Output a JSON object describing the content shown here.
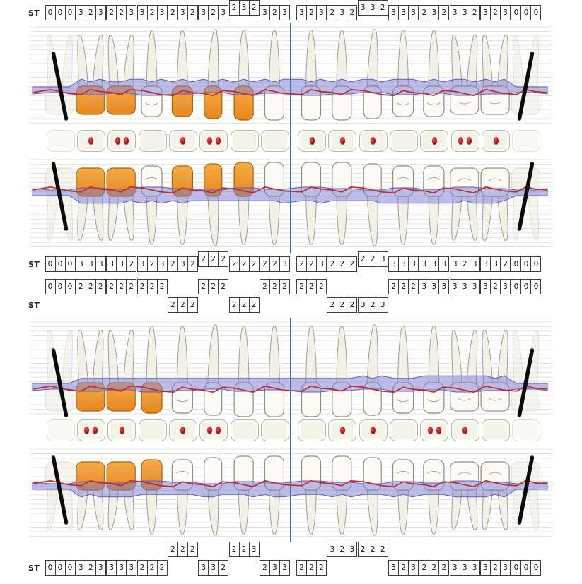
{
  "labels": {
    "st": "ST"
  },
  "perio": {
    "colors": {
      "pocket_band_fill": "rgba(124,124,212,0.5)",
      "pocket_band_stroke": "#5e5eb8",
      "gingival_line": "#c62828",
      "restoration_fill": "#e8871c",
      "restoration_fill_light": "#f7ab45",
      "midline": "#44709f",
      "bleeding_dot": "#c01010",
      "missing_tooth_mark": "#0b0b0b",
      "grid_line": "#dddcd6"
    },
    "teeth": {
      "types": [
        "molar",
        "molar",
        "molar",
        "premolar",
        "premolar",
        "canine",
        "incisor",
        "incisor",
        "incisor",
        "incisor",
        "canine",
        "premolar",
        "premolar",
        "molar",
        "molar",
        "molar"
      ],
      "upper": {
        "present": [
          false,
          true,
          true,
          true,
          true,
          true,
          true,
          true,
          true,
          true,
          true,
          true,
          true,
          true,
          true,
          false
        ],
        "restored": [
          false,
          true,
          true,
          false,
          true,
          true,
          true,
          false,
          false,
          false,
          false,
          false,
          false,
          false,
          false,
          false
        ]
      },
      "lower": {
        "present": [
          false,
          true,
          true,
          true,
          true,
          true,
          true,
          true,
          true,
          true,
          true,
          true,
          true,
          true,
          true,
          false
        ],
        "restored": [
          false,
          true,
          true,
          true,
          false,
          false,
          false,
          false,
          false,
          false,
          false,
          false,
          false,
          false,
          false,
          false
        ]
      }
    },
    "occlusal": {
      "upper_dots": [
        0,
        1,
        2,
        0,
        1,
        2,
        0,
        0,
        1,
        1,
        1,
        0,
        1,
        2,
        1,
        0
      ],
      "lower_dots": [
        0,
        2,
        1,
        0,
        1,
        2,
        0,
        0,
        0,
        1,
        1,
        0,
        2,
        1,
        0,
        0
      ]
    },
    "st_rows": {
      "upper_buccal": [
        {
          "v": [
            "0",
            "0",
            "0"
          ]
        },
        {
          "v": [
            "3",
            "2",
            "3"
          ]
        },
        {
          "v": [
            "2",
            "2",
            "3"
          ]
        },
        {
          "v": [
            "3",
            "2",
            "3"
          ]
        },
        {
          "v": [
            "2",
            "3",
            "2"
          ]
        },
        {
          "v": [
            "3",
            "2",
            "3"
          ]
        },
        {
          "v": [
            "2",
            "3",
            "2"
          ],
          "raised": true
        },
        {
          "v": [
            "3",
            "2",
            "3"
          ]
        },
        {
          "v": [
            "3",
            "2",
            "3"
          ]
        },
        {
          "v": [
            "2",
            "3",
            "2"
          ]
        },
        {
          "v": [
            "3",
            "3",
            "2"
          ],
          "raised": true
        },
        {
          "v": [
            "3",
            "3",
            "3"
          ]
        },
        {
          "v": [
            "2",
            "3",
            "2"
          ]
        },
        {
          "v": [
            "3",
            "3",
            "2"
          ]
        },
        {
          "v": [
            "3",
            "2",
            "3"
          ]
        },
        {
          "v": [
            "0",
            "0",
            "0"
          ]
        }
      ],
      "upper_palatal": [
        {
          "v": [
            "0",
            "0",
            "0"
          ]
        },
        {
          "v": [
            "3",
            "3",
            "3"
          ]
        },
        {
          "v": [
            "3",
            "3",
            "2"
          ]
        },
        {
          "v": [
            "3",
            "2",
            "3"
          ]
        },
        {
          "v": [
            "2",
            "3",
            "2"
          ]
        },
        {
          "v": [
            "2",
            "2",
            "2"
          ],
          "raised": true
        },
        {
          "v": [
            "2",
            "2",
            "2"
          ]
        },
        {
          "v": [
            "2",
            "2",
            "3"
          ]
        },
        {
          "v": [
            "2",
            "2",
            "3"
          ]
        },
        {
          "v": [
            "2",
            "2",
            "2"
          ]
        },
        {
          "v": [
            "2",
            "2",
            "3"
          ],
          "raised": true
        },
        {
          "v": [
            "3",
            "3",
            "3"
          ]
        },
        {
          "v": [
            "3",
            "3",
            "3"
          ]
        },
        {
          "v": [
            "3",
            "2",
            "3"
          ]
        },
        {
          "v": [
            "3",
            "3",
            "2"
          ]
        },
        {
          "v": [
            "0",
            "0",
            "0"
          ]
        }
      ],
      "lower_lingual": [
        {
          "v": [
            "0",
            "0",
            "0"
          ],
          "line": 0
        },
        {
          "v": [
            "2",
            "2",
            "2"
          ],
          "line": 0
        },
        {
          "v": [
            "2",
            "2",
            "2"
          ],
          "line": 0
        },
        {
          "v": [
            "2",
            "2",
            "2"
          ],
          "line": 0
        },
        {
          "v": [
            "2",
            "2",
            "2"
          ],
          "line": 1
        },
        {
          "v": [
            "2",
            "2",
            "2"
          ],
          "line": 0
        },
        {
          "v": [
            "2",
            "2",
            "2"
          ],
          "line": 1
        },
        {
          "v": [
            "2",
            "2",
            "2"
          ],
          "line": 0
        },
        {
          "v": [
            "2",
            "2",
            "2"
          ],
          "line": 0
        },
        {
          "v": [
            "2",
            "2",
            "2"
          ],
          "line": 1
        },
        {
          "v": [
            "3",
            "2",
            "3"
          ],
          "line": 1
        },
        {
          "v": [
            "2",
            "2",
            "2"
          ],
          "line": 0
        },
        {
          "v": [
            "3",
            "3",
            "3"
          ],
          "line": 0
        },
        {
          "v": [
            "3",
            "3",
            "3"
          ],
          "line": 0
        },
        {
          "v": [
            "3",
            "2",
            "3"
          ],
          "line": 0
        },
        {
          "v": [
            "0",
            "0",
            "0"
          ],
          "line": 0
        }
      ],
      "lower_buccal": [
        {
          "v": [
            "0",
            "0",
            "0"
          ],
          "line": 1
        },
        {
          "v": [
            "3",
            "2",
            "3"
          ],
          "line": 1
        },
        {
          "v": [
            "3",
            "3",
            "3"
          ],
          "line": 1
        },
        {
          "v": [
            "2",
            "2",
            "2"
          ],
          "line": 1
        },
        {
          "v": [
            "2",
            "2",
            "2"
          ],
          "line": 0
        },
        {
          "v": [
            "3",
            "3",
            "2"
          ],
          "line": 1
        },
        {
          "v": [
            "2",
            "2",
            "3"
          ],
          "line": 0
        },
        {
          "v": [
            "2",
            "3",
            "3"
          ],
          "line": 1
        },
        {
          "v": [
            "2",
            "2",
            "2"
          ],
          "line": 1
        },
        {
          "v": [
            "3",
            "2",
            "3"
          ],
          "line": 0
        },
        {
          "v": [
            "2",
            "2",
            "2"
          ],
          "line": 0
        },
        {
          "v": [
            "3",
            "2",
            "3"
          ],
          "line": 1
        },
        {
          "v": [
            "2",
            "2",
            "2"
          ],
          "line": 1
        },
        {
          "v": [
            "3",
            "3",
            "3"
          ],
          "line": 1
        },
        {
          "v": [
            "3",
            "2",
            "3"
          ],
          "line": 1
        },
        {
          "v": [
            "0",
            "0",
            "0"
          ],
          "line": 1
        }
      ]
    }
  }
}
